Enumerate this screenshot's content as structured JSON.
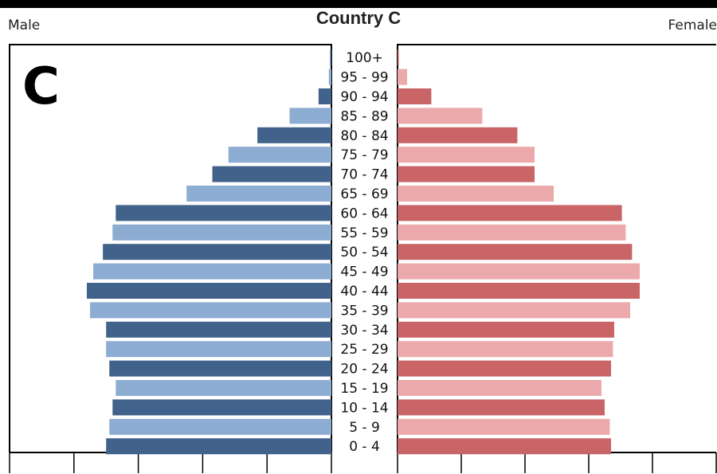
{
  "panel_letter": "C",
  "chart_data": {
    "type": "bar",
    "orientation": "horizontal-pyramid",
    "title": "Country C",
    "left_label": "Male",
    "right_label": "Female",
    "categories": [
      "100+",
      "95 - 99",
      "90 - 94",
      "85 - 89",
      "80 - 84",
      "75 - 79",
      "70 - 74",
      "65 - 69",
      "60 - 64",
      "55 - 59",
      "50 - 54",
      "45 - 49",
      "40 - 44",
      "35 - 39",
      "30 - 34",
      "25 - 29",
      "20 - 24",
      "15 - 19",
      "10 - 14",
      "5 - 9",
      "0 - 4"
    ],
    "series": [
      {
        "name": "Male",
        "values": [
          0.02,
          0.04,
          0.2,
          0.65,
          1.15,
          1.6,
          1.85,
          2.25,
          3.35,
          3.4,
          3.55,
          3.7,
          3.8,
          3.75,
          3.5,
          3.5,
          3.45,
          3.35,
          3.4,
          3.45,
          3.5
        ]
      },
      {
        "name": "Female",
        "values": [
          0.02,
          0.15,
          0.53,
          1.33,
          1.88,
          2.15,
          2.15,
          2.45,
          3.52,
          3.58,
          3.68,
          3.8,
          3.8,
          3.65,
          3.4,
          3.38,
          3.35,
          3.2,
          3.25,
          3.33,
          3.35
        ]
      }
    ],
    "xlim": [
      0,
      5
    ],
    "colors": {
      "male_dark": "#41628a",
      "male_light": "#8dacd1",
      "female_dark": "#c96467",
      "female_light": "#eca9ab"
    },
    "grid": false
  }
}
